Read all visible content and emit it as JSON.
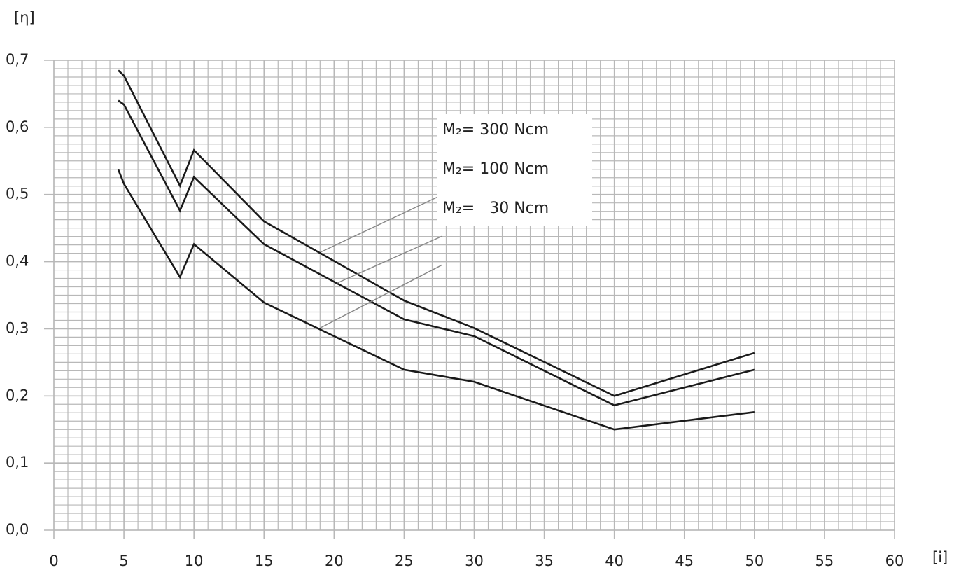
{
  "chart_data": {
    "type": "line",
    "y_label": "[η]",
    "x_label": "[i]",
    "x": [
      4.6,
      5,
      9,
      10,
      15,
      25,
      30,
      40,
      50
    ],
    "series": [
      {
        "name": "M₂= 300 Ncm",
        "color": "#1a1a1a",
        "values": [
          0.685,
          0.677,
          0.513,
          0.566,
          0.46,
          0.342,
          0.301,
          0.2,
          0.264
        ]
      },
      {
        "name": "M₂= 100 Ncm",
        "color": "#1a1a1a",
        "values": [
          0.64,
          0.634,
          0.476,
          0.526,
          0.426,
          0.314,
          0.289,
          0.186,
          0.239
        ]
      },
      {
        "name": "M₂=   30 Ncm",
        "color": "#1a1a1a",
        "values": [
          0.537,
          0.516,
          0.377,
          0.426,
          0.339,
          0.239,
          0.221,
          0.15,
          0.176
        ]
      }
    ],
    "xlim": [
      0,
      60
    ],
    "ylim": [
      0,
      0.7
    ],
    "xticks": [
      0,
      5,
      10,
      15,
      20,
      25,
      30,
      35,
      40,
      45,
      50,
      55,
      60
    ],
    "yticks": [
      {
        "value": 0,
        "label": "0,0"
      },
      {
        "value": 0.1,
        "label": "0,1"
      },
      {
        "value": 0.2,
        "label": "0,2"
      },
      {
        "value": 0.3,
        "label": "0,3"
      },
      {
        "value": 0.4,
        "label": "0,4"
      },
      {
        "value": 0.5,
        "label": "0,5"
      },
      {
        "value": 0.6,
        "label": "0,6"
      },
      {
        "value": 0.7,
        "label": "0,7"
      }
    ],
    "grid": true,
    "minor_grid": {
      "x_step": 1,
      "y_step": 0.0125
    },
    "grid_color": "#b8b8b8"
  }
}
